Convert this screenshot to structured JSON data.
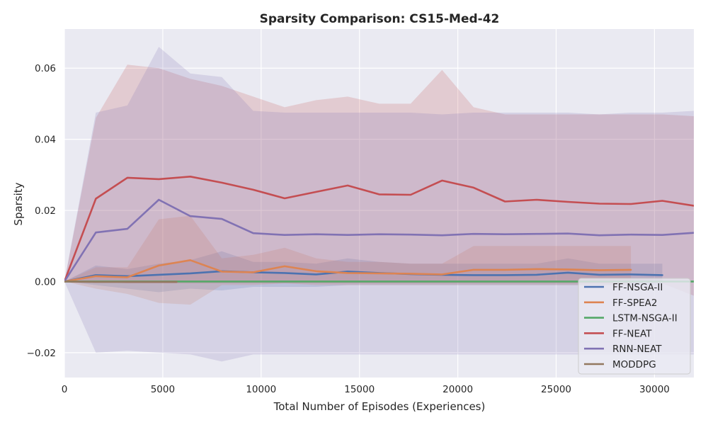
{
  "chart_data": {
    "type": "line",
    "title": "Sparsity Comparison: CS15-Med-42",
    "xlabel": "Total Number of Episodes (Experiences)",
    "ylabel": "Sparsity",
    "xlim": [
      0,
      32000
    ],
    "ylim": [
      -0.027,
      0.071
    ],
    "x_ticks": [
      0,
      5000,
      10000,
      15000,
      20000,
      25000,
      30000
    ],
    "x_tick_labels": [
      "0",
      "5000",
      "10000",
      "15000",
      "20000",
      "25000",
      "30000"
    ],
    "y_ticks": [
      -0.02,
      0.0,
      0.02,
      0.04,
      0.06
    ],
    "y_tick_labels": [
      "−0.02",
      "0.00",
      "0.02",
      "0.04",
      "0.06"
    ],
    "grid": true,
    "legend_position": "lower-right",
    "series": [
      {
        "name": "FF-NSGA-II",
        "color": "#4c72b0",
        "x": [
          0,
          1600,
          3200,
          4800,
          6400,
          8000,
          9600,
          11200,
          12800,
          14400,
          16000,
          17600,
          19200,
          20800,
          22400,
          24000,
          25600,
          27200,
          28800,
          30400
        ],
        "y": [
          0,
          0.0018,
          0.0015,
          0.0019,
          0.0023,
          0.0029,
          0.0026,
          0.0024,
          0.002,
          0.0028,
          0.0024,
          0.0021,
          0.0019,
          0.0018,
          0.0018,
          0.0019,
          0.0025,
          0.0019,
          0.002,
          0.0018
        ],
        "lower": [
          0,
          -0.001,
          -0.002,
          -0.003,
          -0.002,
          -0.0025,
          -0.0015,
          -0.0015,
          -0.0015,
          -0.001,
          -0.001,
          -0.001,
          -0.001,
          -0.001,
          -0.001,
          -0.001,
          -0.001,
          -0.001,
          -0.001,
          -0.001
        ],
        "upper": [
          0,
          0.0045,
          0.0035,
          0.005,
          0.006,
          0.0085,
          0.0055,
          0.0055,
          0.005,
          0.0065,
          0.0055,
          0.005,
          0.005,
          0.005,
          0.005,
          0.005,
          0.0065,
          0.005,
          0.005,
          0.005
        ]
      },
      {
        "name": "FF-SPEA2",
        "color": "#dd8452",
        "x": [
          0,
          1600,
          3200,
          4800,
          6400,
          8000,
          9600,
          11200,
          12800,
          14400,
          16000,
          17600,
          19200,
          20800,
          22400,
          24000,
          25600,
          27200,
          28800
        ],
        "y": [
          0,
          0.0015,
          0.0012,
          0.0045,
          0.006,
          0.0028,
          0.0026,
          0.0043,
          0.0029,
          0.0024,
          0.0023,
          0.0022,
          0.002,
          0.0033,
          0.0033,
          0.0035,
          0.0034,
          0.0032,
          0.0033
        ],
        "lower": [
          0,
          -0.002,
          -0.0035,
          -0.006,
          -0.0065,
          -0.001,
          -0.001,
          -0.0005,
          -0.001,
          -0.001,
          -0.001,
          -0.001,
          -0.001,
          -0.001,
          -0.001,
          -0.001,
          -0.001,
          -0.001,
          -0.001
        ],
        "upper": [
          0,
          0.004,
          0.004,
          0.0175,
          0.0185,
          0.0065,
          0.0075,
          0.0095,
          0.0065,
          0.0055,
          0.0055,
          0.005,
          0.005,
          0.01,
          0.01,
          0.01,
          0.01,
          0.01,
          0.01
        ]
      },
      {
        "name": "LSTM-NSGA-II",
        "color": "#55a868",
        "x": [
          0,
          32000
        ],
        "y": [
          0,
          0
        ],
        "lower": [
          0,
          0
        ],
        "upper": [
          0,
          0
        ]
      },
      {
        "name": "FF-NEAT",
        "color": "#c44e52",
        "x": [
          0,
          1600,
          3200,
          4800,
          6400,
          8000,
          9600,
          11200,
          12800,
          14400,
          16000,
          17600,
          19200,
          20800,
          22400,
          24000,
          25600,
          27200,
          28800,
          30400,
          32000
        ],
        "y": [
          0,
          0.0233,
          0.0292,
          0.0288,
          0.0295,
          0.0278,
          0.0258,
          0.0234,
          0.0252,
          0.027,
          0.0245,
          0.0244,
          0.0284,
          0.0264,
          0.0225,
          0.023,
          0.0224,
          0.0219,
          0.0218,
          0.0227,
          0.0213
        ],
        "lower": [
          0,
          0.0,
          -0.0005,
          -0.0005,
          -0.0005,
          -0.0005,
          -0.0005,
          -0.0005,
          -0.0005,
          -0.0005,
          -0.0005,
          -0.0005,
          -0.0005,
          -0.0005,
          -0.0005,
          -0.0005,
          -0.0005,
          -0.0005,
          -0.0005,
          -0.0005,
          -0.004
        ],
        "upper": [
          0,
          0.046,
          0.061,
          0.06,
          0.057,
          0.055,
          0.052,
          0.049,
          0.051,
          0.052,
          0.05,
          0.05,
          0.0595,
          0.049,
          0.047,
          0.047,
          0.047,
          0.047,
          0.047,
          0.047,
          0.0465
        ]
      },
      {
        "name": "RNN-NEAT",
        "color": "#8172b3",
        "x": [
          0,
          1600,
          3200,
          4800,
          6400,
          8000,
          9600,
          11200,
          12800,
          14400,
          16000,
          17600,
          19200,
          20800,
          22400,
          24000,
          25600,
          27200,
          28800,
          30400,
          32000
        ],
        "y": [
          0,
          0.0138,
          0.0148,
          0.023,
          0.0184,
          0.0176,
          0.0136,
          0.0131,
          0.0133,
          0.0131,
          0.0133,
          0.0132,
          0.013,
          0.0134,
          0.0133,
          0.0134,
          0.0135,
          0.013,
          0.0132,
          0.0131,
          0.0137
        ],
        "lower": [
          0,
          -0.02,
          -0.0195,
          -0.02,
          -0.0205,
          -0.0225,
          -0.0205,
          -0.0205,
          -0.0205,
          -0.0205,
          -0.0205,
          -0.0205,
          -0.0205,
          -0.0205,
          -0.0205,
          -0.0205,
          -0.0205,
          -0.0205,
          -0.0205,
          -0.0205,
          -0.0205
        ],
        "upper": [
          0,
          0.0475,
          0.0495,
          0.066,
          0.0585,
          0.0575,
          0.048,
          0.0475,
          0.0475,
          0.0475,
          0.0475,
          0.0475,
          0.047,
          0.0475,
          0.0475,
          0.0475,
          0.0475,
          0.047,
          0.0475,
          0.0475,
          0.048
        ]
      },
      {
        "name": "MODDPG",
        "color": "#937860",
        "x": [
          0,
          1600,
          3200,
          4800,
          5700
        ],
        "y": [
          0,
          -0.0001,
          -0.0001,
          -0.0001,
          -0.0001
        ],
        "lower": [
          0,
          -0.0004,
          -0.0004,
          -0.0004,
          -0.0004
        ],
        "upper": [
          0,
          0.0002,
          0.0002,
          0.0002,
          0.0002
        ]
      }
    ]
  }
}
